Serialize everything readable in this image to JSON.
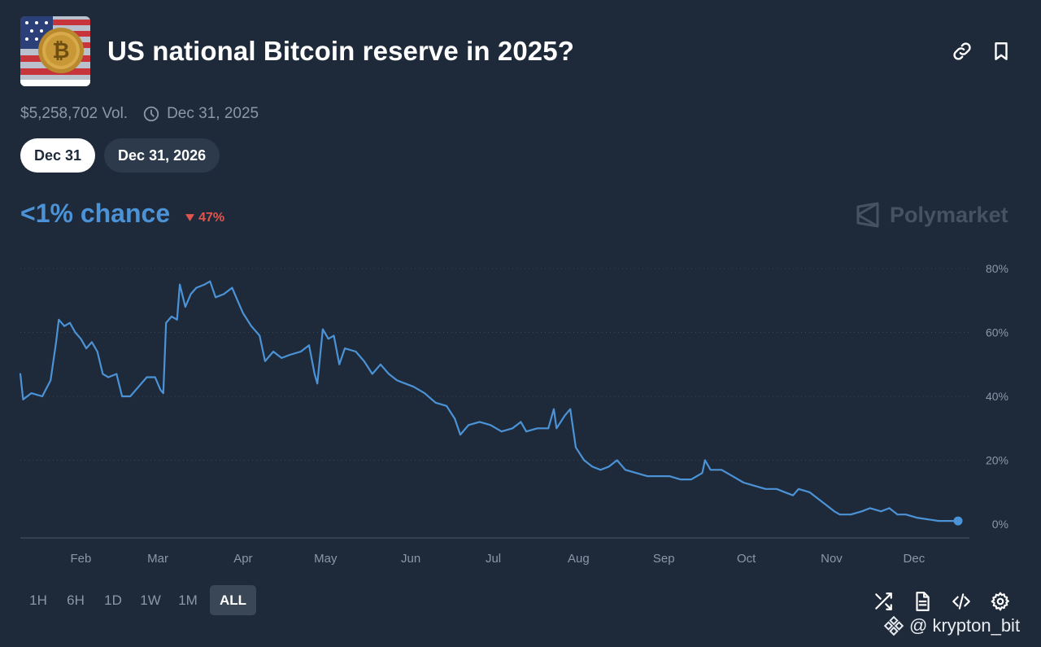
{
  "header": {
    "title": "US national Bitcoin reserve in 2025?",
    "thumbnail_icon": "bitcoin-flag-icon",
    "link_icon": "link-icon",
    "bookmark_icon": "bookmark-icon"
  },
  "meta": {
    "volume": "$5,258,702 Vol.",
    "end_date": "Dec 31, 2025"
  },
  "pills": [
    {
      "label": "Dec 31",
      "active": true
    },
    {
      "label": "Dec 31, 2026",
      "active": false
    }
  ],
  "chance": {
    "label": "<1% chance",
    "delta": "47%",
    "direction": "down"
  },
  "brand": "Polymarket",
  "colors": {
    "accent": "#4b93d6",
    "down": "#e2554f",
    "background": "#1e2a3a"
  },
  "ranges": [
    {
      "label": "1H",
      "active": false
    },
    {
      "label": "6H",
      "active": false
    },
    {
      "label": "1D",
      "active": false
    },
    {
      "label": "1W",
      "active": false
    },
    {
      "label": "1M",
      "active": false
    },
    {
      "label": "ALL",
      "active": true
    }
  ],
  "watermark": "@ krypton_bit",
  "chart_data": {
    "type": "line",
    "x_labels": [
      "Feb",
      "Mar",
      "Apr",
      "May",
      "Jun",
      "Jul",
      "Aug",
      "Sep",
      "Oct",
      "Nov",
      "Dec"
    ],
    "y_ticks": [
      "0%",
      "20%",
      "40%",
      "60%",
      "80%"
    ],
    "ylim": [
      0,
      80
    ],
    "grid": true,
    "series": [
      {
        "values": [
          [
            "2025-01-10",
            47
          ],
          [
            "2025-01-11",
            39
          ],
          [
            "2025-01-14",
            41
          ],
          [
            "2025-01-18",
            40
          ],
          [
            "2025-01-21",
            45
          ],
          [
            "2025-01-23",
            57
          ],
          [
            "2025-01-24",
            64
          ],
          [
            "2025-01-26",
            62
          ],
          [
            "2025-01-28",
            63
          ],
          [
            "2025-01-30",
            60
          ],
          [
            "2025-02-01",
            58
          ],
          [
            "2025-02-03",
            55
          ],
          [
            "2025-02-05",
            57
          ],
          [
            "2025-02-07",
            54
          ],
          [
            "2025-02-09",
            47
          ],
          [
            "2025-02-11",
            46
          ],
          [
            "2025-02-14",
            47
          ],
          [
            "2025-02-16",
            40
          ],
          [
            "2025-02-19",
            40
          ],
          [
            "2025-02-22",
            43
          ],
          [
            "2025-02-25",
            46
          ],
          [
            "2025-02-28",
            46
          ],
          [
            "2025-03-02",
            42
          ],
          [
            "2025-03-03",
            41
          ],
          [
            "2025-03-04",
            63
          ],
          [
            "2025-03-06",
            65
          ],
          [
            "2025-03-08",
            64
          ],
          [
            "2025-03-09",
            75
          ],
          [
            "2025-03-11",
            68
          ],
          [
            "2025-03-13",
            72
          ],
          [
            "2025-03-15",
            74
          ],
          [
            "2025-03-18",
            75
          ],
          [
            "2025-03-20",
            76
          ],
          [
            "2025-03-22",
            71
          ],
          [
            "2025-03-25",
            72
          ],
          [
            "2025-03-28",
            74
          ],
          [
            "2025-03-30",
            70
          ],
          [
            "2025-04-01",
            66
          ],
          [
            "2025-04-04",
            62
          ],
          [
            "2025-04-07",
            59
          ],
          [
            "2025-04-09",
            51
          ],
          [
            "2025-04-12",
            54
          ],
          [
            "2025-04-15",
            52
          ],
          [
            "2025-04-18",
            53
          ],
          [
            "2025-04-22",
            54
          ],
          [
            "2025-04-25",
            56
          ],
          [
            "2025-04-27",
            47
          ],
          [
            "2025-04-28",
            44
          ],
          [
            "2025-04-30",
            61
          ],
          [
            "2025-05-02",
            58
          ],
          [
            "2025-05-04",
            59
          ],
          [
            "2025-05-06",
            50
          ],
          [
            "2025-05-08",
            55
          ],
          [
            "2025-05-12",
            54
          ],
          [
            "2025-05-15",
            51
          ],
          [
            "2025-05-18",
            47
          ],
          [
            "2025-05-21",
            50
          ],
          [
            "2025-05-24",
            47
          ],
          [
            "2025-05-27",
            45
          ],
          [
            "2025-05-30",
            44
          ],
          [
            "2025-06-02",
            43
          ],
          [
            "2025-06-06",
            41
          ],
          [
            "2025-06-10",
            38
          ],
          [
            "2025-06-14",
            37
          ],
          [
            "2025-06-17",
            33
          ],
          [
            "2025-06-19",
            28
          ],
          [
            "2025-06-22",
            31
          ],
          [
            "2025-06-26",
            32
          ],
          [
            "2025-06-30",
            31
          ],
          [
            "2025-07-04",
            29
          ],
          [
            "2025-07-08",
            30
          ],
          [
            "2025-07-11",
            32
          ],
          [
            "2025-07-13",
            29
          ],
          [
            "2025-07-17",
            30
          ],
          [
            "2025-07-21",
            30
          ],
          [
            "2025-07-23",
            36
          ],
          [
            "2025-07-24",
            30
          ],
          [
            "2025-07-27",
            34
          ],
          [
            "2025-07-29",
            36
          ],
          [
            "2025-07-31",
            24
          ],
          [
            "2025-08-03",
            20
          ],
          [
            "2025-08-06",
            18
          ],
          [
            "2025-08-09",
            17
          ],
          [
            "2025-08-12",
            18
          ],
          [
            "2025-08-15",
            20
          ],
          [
            "2025-08-18",
            17
          ],
          [
            "2025-08-22",
            16
          ],
          [
            "2025-08-26",
            15
          ],
          [
            "2025-08-30",
            15
          ],
          [
            "2025-09-03",
            15
          ],
          [
            "2025-09-07",
            14
          ],
          [
            "2025-09-11",
            14
          ],
          [
            "2025-09-15",
            16
          ],
          [
            "2025-09-16",
            20
          ],
          [
            "2025-09-18",
            17
          ],
          [
            "2025-09-22",
            17
          ],
          [
            "2025-09-26",
            15
          ],
          [
            "2025-09-30",
            13
          ],
          [
            "2025-10-04",
            12
          ],
          [
            "2025-10-08",
            11
          ],
          [
            "2025-10-12",
            11
          ],
          [
            "2025-10-15",
            10
          ],
          [
            "2025-10-18",
            9
          ],
          [
            "2025-10-20",
            11
          ],
          [
            "2025-10-24",
            10
          ],
          [
            "2025-10-27",
            8
          ],
          [
            "2025-10-30",
            6
          ],
          [
            "2025-11-02",
            4
          ],
          [
            "2025-11-04",
            3
          ],
          [
            "2025-11-08",
            3
          ],
          [
            "2025-11-12",
            4
          ],
          [
            "2025-11-15",
            5
          ],
          [
            "2025-11-19",
            4
          ],
          [
            "2025-11-22",
            5
          ],
          [
            "2025-11-25",
            3
          ],
          [
            "2025-11-28",
            3
          ],
          [
            "2025-12-02",
            2
          ],
          [
            "2025-12-06",
            1.5
          ],
          [
            "2025-12-10",
            1
          ],
          [
            "2025-12-14",
            1
          ],
          [
            "2025-12-17",
            1
          ]
        ]
      }
    ]
  }
}
